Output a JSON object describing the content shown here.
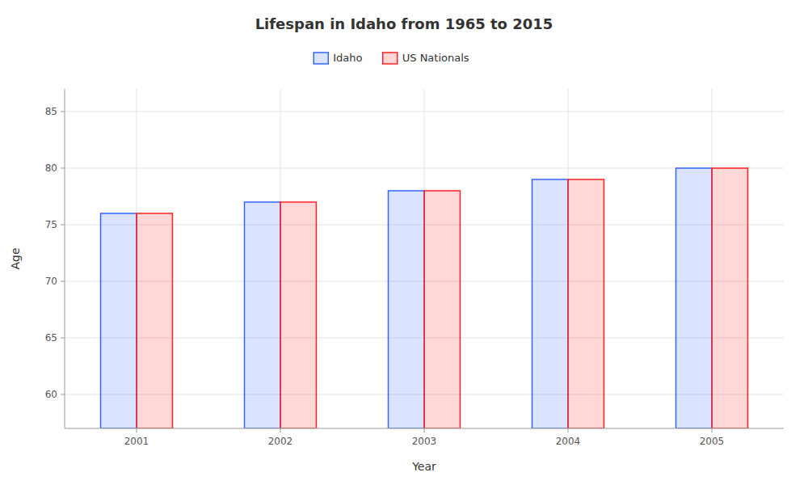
{
  "chart_data": {
    "type": "bar",
    "title": "Lifespan in Idaho from 1965 to 2015",
    "xlabel": "Year",
    "ylabel": "Age",
    "categories": [
      "2001",
      "2002",
      "2003",
      "2004",
      "2005"
    ],
    "series": [
      {
        "name": "Idaho",
        "color": "#3366ff",
        "values": [
          76,
          77,
          78,
          79,
          80
        ]
      },
      {
        "name": "US Nationals",
        "color": "#ff2222",
        "values": [
          76,
          77,
          78,
          79,
          80
        ]
      }
    ],
    "ylim": [
      57,
      87
    ],
    "yticks": [
      60,
      65,
      70,
      75,
      80,
      85
    ],
    "grid": true,
    "legend": "top"
  }
}
